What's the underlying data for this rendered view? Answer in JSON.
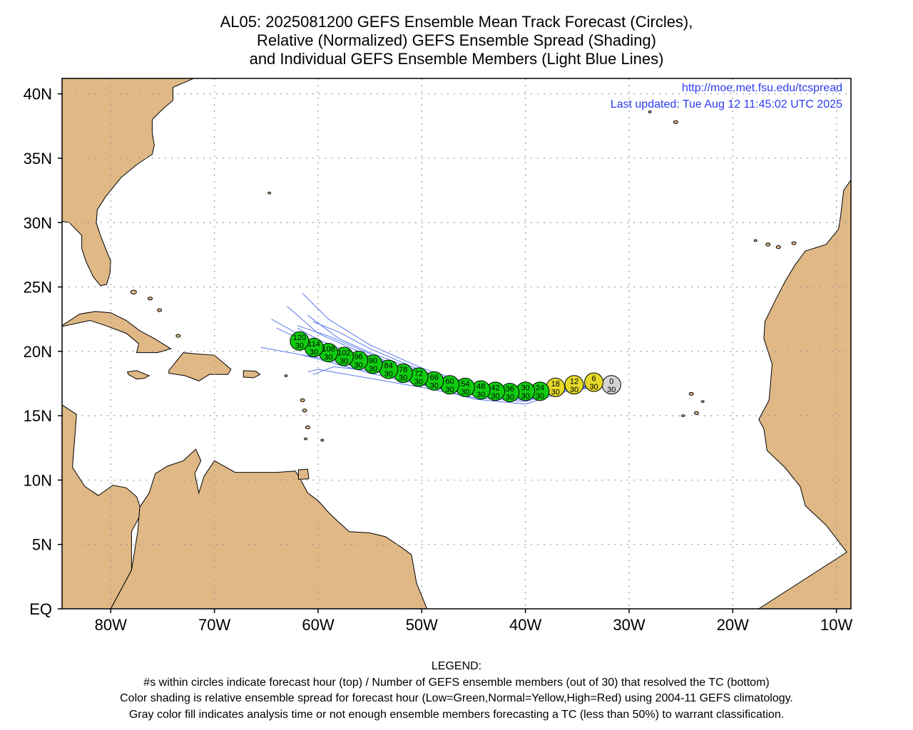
{
  "title": {
    "line1": "AL05: 2025081200 GEFS Ensemble Mean Track Forecast (Circles),",
    "line2": "Relative (Normalized) GEFS Ensemble Spread (Shading)",
    "line3": "and Individual GEFS Ensemble Members (Light Blue Lines)"
  },
  "credit": {
    "url": "http://moe.met.fsu.edu/tcspread",
    "updated": "Last updated: Tue Aug 12 11:45:02 UTC 2025"
  },
  "axes": {
    "lat_labels": [
      "EQ",
      "5N",
      "10N",
      "15N",
      "20N",
      "25N",
      "30N",
      "35N",
      "40N"
    ],
    "lat_values": [
      0,
      5,
      10,
      15,
      20,
      25,
      30,
      35,
      40
    ],
    "lon_labels": [
      "80W",
      "70W",
      "60W",
      "50W",
      "40W",
      "30W",
      "20W",
      "10W"
    ],
    "lon_values": [
      -80,
      -70,
      -60,
      -50,
      -40,
      -30,
      -20,
      -10
    ],
    "lon_range": [
      -84.7,
      -8.6
    ],
    "lat_range": [
      0,
      41.2
    ]
  },
  "colors": {
    "land": "#dfb886",
    "ocean": "#ffffff",
    "coast": "#000000",
    "grid": "#9a9a9a",
    "member_lines": "#5577ee",
    "low_spread": "#10cc10",
    "normal_spread": "#e6d92a",
    "analysis_gray": "#d4d4d4",
    "credit_text": "#2a3cf0"
  },
  "forecast_points": [
    {
      "hour": "0",
      "members": "30",
      "lat": 17.4,
      "lon": -31.7,
      "shade": "gray"
    },
    {
      "hour": "6",
      "members": "30",
      "lat": 17.6,
      "lon": -33.4,
      "shade": "yellow"
    },
    {
      "hour": "12",
      "members": "30",
      "lat": 17.4,
      "lon": -35.3,
      "shade": "yellow"
    },
    {
      "hour": "18",
      "members": "30",
      "lat": 17.2,
      "lon": -37.1,
      "shade": "yellow"
    },
    {
      "hour": "24",
      "members": "30",
      "lat": 16.9,
      "lon": -38.6,
      "shade": "green"
    },
    {
      "hour": "30",
      "members": "30",
      "lat": 16.9,
      "lon": -40.0,
      "shade": "green"
    },
    {
      "hour": "36",
      "members": "30",
      "lat": 16.8,
      "lon": -41.5,
      "shade": "green"
    },
    {
      "hour": "42",
      "members": "30",
      "lat": 16.9,
      "lon": -42.9,
      "shade": "green"
    },
    {
      "hour": "48",
      "members": "30",
      "lat": 17.0,
      "lon": -44.3,
      "shade": "green"
    },
    {
      "hour": "54",
      "members": "30",
      "lat": 17.2,
      "lon": -45.8,
      "shade": "green"
    },
    {
      "hour": "60",
      "members": "30",
      "lat": 17.4,
      "lon": -47.3,
      "shade": "green"
    },
    {
      "hour": "66",
      "members": "30",
      "lat": 17.7,
      "lon": -48.8,
      "shade": "green"
    },
    {
      "hour": "72",
      "members": "30",
      "lat": 18.0,
      "lon": -50.3,
      "shade": "green"
    },
    {
      "hour": "78",
      "members": "30",
      "lat": 18.3,
      "lon": -51.8,
      "shade": "green"
    },
    {
      "hour": "84",
      "members": "30",
      "lat": 18.6,
      "lon": -53.2,
      "shade": "green"
    },
    {
      "hour": "90",
      "members": "30",
      "lat": 19.0,
      "lon": -54.7,
      "shade": "green"
    },
    {
      "hour": "96",
      "members": "30",
      "lat": 19.3,
      "lon": -56.1,
      "shade": "green"
    },
    {
      "hour": "102",
      "members": "30",
      "lat": 19.6,
      "lon": -57.5,
      "shade": "green"
    },
    {
      "hour": "108",
      "members": "30",
      "lat": 19.9,
      "lon": -59.0,
      "shade": "green"
    },
    {
      "hour": "114",
      "members": "30",
      "lat": 20.3,
      "lon": -60.4,
      "shade": "green"
    },
    {
      "hour": "120",
      "members": "30",
      "lat": 20.8,
      "lon": -61.8,
      "shade": "green"
    }
  ],
  "ensemble_members": [
    [
      [
        -31.7,
        17.4
      ],
      [
        -36,
        17.2
      ],
      [
        -40,
        16.5
      ],
      [
        -45,
        17.0
      ],
      [
        -50,
        18.2
      ],
      [
        -55,
        19.6
      ],
      [
        -60,
        21.4
      ],
      [
        -63,
        23.5
      ]
    ],
    [
      [
        -31.7,
        17.4
      ],
      [
        -36,
        17.0
      ],
      [
        -40,
        16.3
      ],
      [
        -45,
        16.7
      ],
      [
        -50,
        17.6
      ],
      [
        -55,
        18.6
      ],
      [
        -60,
        19.5
      ],
      [
        -65.5,
        20.3
      ]
    ],
    [
      [
        -31.7,
        17.4
      ],
      [
        -36,
        17.2
      ],
      [
        -40,
        16.7
      ],
      [
        -45,
        17.3
      ],
      [
        -50,
        18.5
      ],
      [
        -55,
        20.2
      ],
      [
        -58,
        21.5
      ],
      [
        -60.5,
        22.3
      ]
    ],
    [
      [
        -31.7,
        17.4
      ],
      [
        -36,
        17.1
      ],
      [
        -40,
        16.4
      ],
      [
        -45,
        16.8
      ],
      [
        -50,
        17.9
      ],
      [
        -55,
        19.0
      ],
      [
        -60,
        20.5
      ],
      [
        -64.5,
        22.5
      ]
    ],
    [
      [
        -31.7,
        17.4
      ],
      [
        -36,
        17.0
      ],
      [
        -40,
        16.1
      ],
      [
        -45,
        16.4
      ],
      [
        -50,
        17.2
      ],
      [
        -55,
        17.9
      ],
      [
        -60,
        18.6
      ],
      [
        -61,
        18.4
      ]
    ],
    [
      [
        -31.7,
        17.4
      ],
      [
        -36,
        17.3
      ],
      [
        -40,
        16.8
      ],
      [
        -45,
        17.4
      ],
      [
        -50,
        18.7
      ],
      [
        -55,
        20.5
      ],
      [
        -59,
        22.5
      ],
      [
        -61.5,
        24.5
      ]
    ],
    [
      [
        -31.7,
        17.4
      ],
      [
        -36,
        17.1
      ],
      [
        -40,
        16.6
      ],
      [
        -45,
        17.0
      ],
      [
        -50,
        18.1
      ],
      [
        -55,
        19.3
      ],
      [
        -60,
        20.9
      ],
      [
        -62,
        21.8
      ]
    ],
    [
      [
        -31.7,
        17.4
      ],
      [
        -36,
        16.9
      ],
      [
        -40,
        15.9
      ],
      [
        -45,
        16.3
      ],
      [
        -50,
        17.5
      ],
      [
        -55,
        18.9
      ],
      [
        -60,
        20.3
      ],
      [
        -64,
        21.8
      ]
    ],
    [
      [
        -31.7,
        17.4
      ],
      [
        -36,
        17.2
      ],
      [
        -40,
        16.6
      ],
      [
        -45,
        17.1
      ],
      [
        -50,
        18.4
      ],
      [
        -55,
        19.9
      ],
      [
        -58,
        21.0
      ],
      [
        -61,
        22.8
      ]
    ],
    [
      [
        -31.7,
        17.4
      ],
      [
        -36,
        17.0
      ],
      [
        -40,
        16.2
      ],
      [
        -45,
        16.6
      ],
      [
        -50,
        17.4
      ],
      [
        -55,
        18.3
      ],
      [
        -60,
        19.4
      ],
      [
        -61.5,
        19.7
      ]
    ],
    [
      [
        -31.7,
        17.4
      ],
      [
        -36,
        17.1
      ],
      [
        -40,
        16.5
      ],
      [
        -45,
        16.9
      ],
      [
        -50,
        17.8
      ],
      [
        -55,
        18.5
      ],
      [
        -58.5,
        18.8
      ],
      [
        -60.5,
        18.2
      ]
    ],
    [
      [
        -31.7,
        17.4
      ],
      [
        -36,
        17.2
      ],
      [
        -40,
        16.4
      ],
      [
        -45,
        16.8
      ],
      [
        -50,
        18.0
      ],
      [
        -55,
        19.8
      ],
      [
        -59,
        21.2
      ],
      [
        -62,
        22.0
      ]
    ]
  ]
}
